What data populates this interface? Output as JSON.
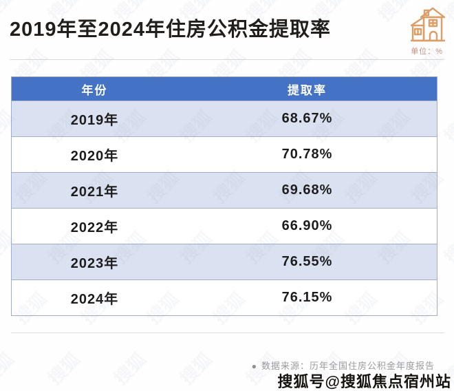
{
  "title": "2019年至2024年住房公积金提取率",
  "header": {
    "unit_label": "单位：%",
    "icon_color": "#db9e66"
  },
  "table": {
    "columns": [
      "年份",
      "提取率"
    ],
    "rows": [
      {
        "year": "2019年",
        "rate": "68.67%"
      },
      {
        "year": "2020年",
        "rate": "70.78%"
      },
      {
        "year": "2021年",
        "rate": "69.68%"
      },
      {
        "year": "2022年",
        "rate": "66.90%"
      },
      {
        "year": "2023年",
        "rate": "76.55%"
      },
      {
        "year": "2024年",
        "rate": "76.15%"
      }
    ],
    "colors": {
      "header_bg": "#4472c4",
      "header_text": "#ffffff",
      "alt_row_bg": "#dae2f2",
      "row_bg": "#ffffff",
      "border": "#9faec6"
    }
  },
  "footer": {
    "bullet": "●",
    "source": "数据来源：历年全国住房公积金年度报告"
  },
  "watermark": {
    "sohu": "搜狐号@搜狐焦点宿州站",
    "pattern_glyph": "搜狐"
  },
  "chart_data": {
    "type": "table",
    "title": "2019年至2024年住房公积金提取率",
    "unit": "%",
    "columns": [
      "年份",
      "提取率"
    ],
    "categories": [
      "2019年",
      "2020年",
      "2021年",
      "2022年",
      "2023年",
      "2024年"
    ],
    "values": [
      68.67,
      70.78,
      69.68,
      66.9,
      76.55,
      76.15
    ],
    "source": "数据来源：历年全国住房公积金年度报告"
  }
}
